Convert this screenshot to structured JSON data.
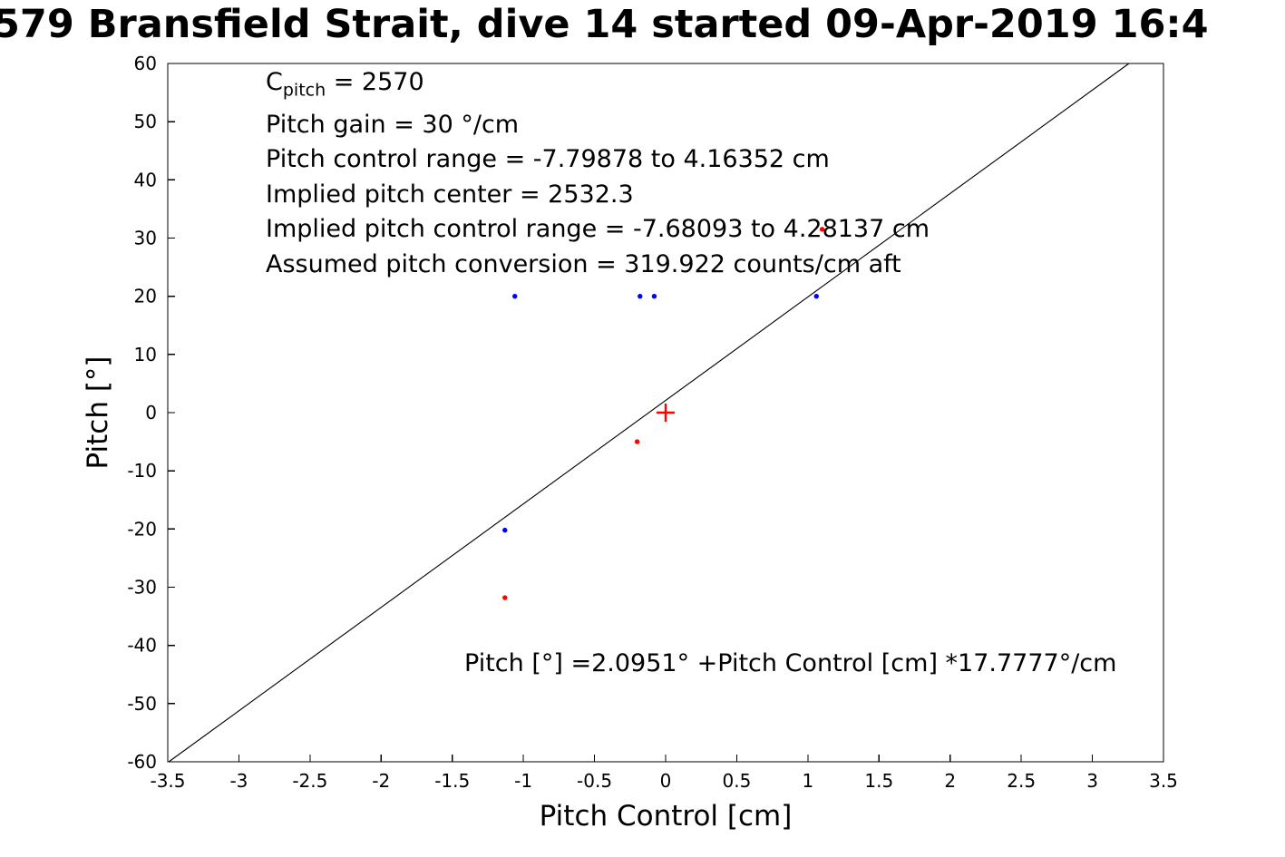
{
  "figure": {
    "title": "579 Bransfield Strait, dive 14 started 09-Apr-2019 16:4"
  },
  "chart_data": {
    "type": "scatter",
    "title": "579 Bransfield Strait, dive 14 started 09-Apr-2019 16:4",
    "xlabel": "Pitch Control [cm]",
    "ylabel": "Pitch [°]",
    "xlim": [
      -3.5,
      3.5
    ],
    "ylim": [
      -60,
      60
    ],
    "xticks": [
      -3.5,
      -3,
      -2.5,
      -2,
      -1.5,
      -1,
      -0.5,
      0,
      0.5,
      1,
      1.5,
      2,
      2.5,
      3,
      3.5
    ],
    "yticks": [
      -60,
      -50,
      -40,
      -30,
      -20,
      -10,
      0,
      10,
      20,
      30,
      40,
      50,
      60
    ],
    "grid": false,
    "legend": "none",
    "axis_color": "#000000",
    "fit_line": {
      "slope": 17.7777,
      "intercept": 2.0951,
      "color": "#000000"
    },
    "series": [
      {
        "name": "observed-pitch-blue",
        "marker": "dot",
        "color": "#0000ff",
        "points": [
          [
            -1.06,
            20
          ],
          [
            -0.18,
            20
          ],
          [
            -0.08,
            20
          ],
          [
            1.06,
            20
          ],
          [
            -1.13,
            -20.2
          ]
        ]
      },
      {
        "name": "implied-pitch-red",
        "marker": "dot",
        "color": "#ff0000",
        "points": [
          [
            1.1,
            31.5
          ],
          [
            -0.2,
            -5
          ],
          [
            -1.13,
            -31.8
          ]
        ]
      },
      {
        "name": "pitch-center-marker",
        "marker": "plus",
        "color": "#ff0000",
        "points": [
          [
            0,
            0
          ]
        ]
      }
    ],
    "annotations": {
      "cpitch": {
        "base": "C",
        "sub": "pitch",
        "rest": " = 2570"
      },
      "info_lines": [
        "Pitch gain = 30 °/cm",
        "Pitch control range = -7.79878 to 4.16352 cm",
        "Implied pitch center = 2532.3",
        "Implied pitch control range = -7.68093 to 4.28137 cm",
        "Assumed pitch conversion = 319.922 counts/cm aft"
      ],
      "equation": "Pitch [°] =2.0951° +Pitch Control [cm] *17.7777°/cm"
    }
  }
}
